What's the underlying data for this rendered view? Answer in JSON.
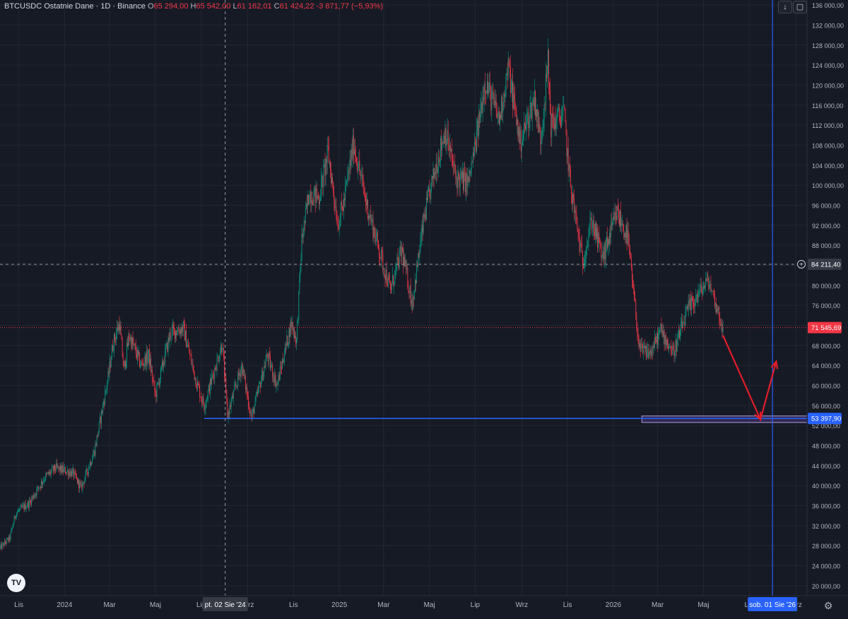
{
  "legend": {
    "symbol": "BTCUSDC Ostatnie Dane · 1D · Binance",
    "o_key": "O",
    "o_val": "65 294,00",
    "h_key": "H",
    "h_val": "65 542,00",
    "l_key": "L",
    "l_val": "61 162,01",
    "c_key": "C",
    "c_val": "61 424,22",
    "change": "-3 871,77 (−5,93%)"
  },
  "icons": {
    "scroll": "arrow-down-icon",
    "screenshot": "camera-icon",
    "logo": "tradingview-logo-icon",
    "settings": "gear-icon"
  },
  "icon_glyphs": {
    "scroll": "↓",
    "screenshot": "▢",
    "logo": "TV",
    "settings": "⚙"
  },
  "colors": {
    "background": "#161a25",
    "grid": "#232632",
    "text": "#b2b5be",
    "up": "#089981",
    "down": "#f23645",
    "accent": "#2962ff",
    "last_price_label": "#f23645",
    "arrow": "#e11d2a",
    "zone": "#7e57c2"
  },
  "chart_data": {
    "type": "candlestick",
    "symbol": "BTCUSDC",
    "interval": "1D",
    "exchange": "Binance",
    "price_scale": {
      "min": 18000,
      "max": 137000,
      "tick_step": 4000,
      "side": "right"
    },
    "y_ticks": [
      "136 000,00",
      "132 000,00",
      "128 000,00",
      "124 000,00",
      "120 000,00",
      "116 000,00",
      "112 000,00",
      "108 000,00",
      "104 000,00",
      "100 000,00",
      "96 000,00",
      "92 000,00",
      "88 000,00",
      "84 000,00",
      "80 000,00",
      "76 000,00",
      "72 000,00",
      "68 000,00",
      "64 000,00",
      "60 000,00",
      "56 000,00",
      "52 000,00",
      "48 000,00",
      "44 000,00",
      "40 000,00",
      "36 000,00",
      "32 000,00",
      "28 000,00",
      "24 000,00",
      "20 000,00"
    ],
    "x_ticks": [
      {
        "label": "Lis",
        "date": "2023-11-01"
      },
      {
        "label": "2024",
        "date": "2024-01-01"
      },
      {
        "label": "Mar",
        "date": "2024-03-01"
      },
      {
        "label": "Maj",
        "date": "2024-05-01"
      },
      {
        "label": "Lip",
        "date": "2024-07-01"
      },
      {
        "label": "Wrz",
        "date": "2024-09-01"
      },
      {
        "label": "Lis",
        "date": "2024-11-01"
      },
      {
        "label": "2025",
        "date": "2025-01-01"
      },
      {
        "label": "Mar",
        "date": "2025-03-01"
      },
      {
        "label": "Maj",
        "date": "2025-05-01"
      },
      {
        "label": "Lip",
        "date": "2025-07-01"
      },
      {
        "label": "Wrz",
        "date": "2025-09-01"
      },
      {
        "label": "Lis",
        "date": "2025-11-01"
      },
      {
        "label": "2026",
        "date": "2026-01-01"
      },
      {
        "label": "Mar",
        "date": "2026-03-01"
      },
      {
        "label": "Maj",
        "date": "2026-05-01"
      },
      {
        "label": "Lip",
        "date": "2026-07-01"
      },
      {
        "label": "Wrz",
        "date": "2026-09-01"
      }
    ],
    "x_range": [
      "2023-10-07",
      "2026-09-16"
    ],
    "last_close_date": "2026-05-27",
    "close_path": [
      [
        "2023-10-07",
        27500
      ],
      [
        "2023-10-20",
        29500
      ],
      [
        "2023-10-28",
        34500
      ],
      [
        "2023-11-15",
        36500
      ],
      [
        "2023-12-05",
        41500
      ],
      [
        "2023-12-20",
        43500
      ],
      [
        "2024-01-12",
        42500
      ],
      [
        "2024-01-23",
        39500
      ],
      [
        "2024-02-10",
        47000
      ],
      [
        "2024-02-28",
        61500
      ],
      [
        "2024-03-05",
        68000
      ],
      [
        "2024-03-14",
        72500
      ],
      [
        "2024-03-20",
        63000
      ],
      [
        "2024-03-27",
        70000
      ],
      [
        "2024-04-12",
        64000
      ],
      [
        "2024-04-22",
        66000
      ],
      [
        "2024-05-01",
        58000
      ],
      [
        "2024-05-21",
        70500
      ],
      [
        "2024-06-07",
        71500
      ],
      [
        "2024-06-24",
        61000
      ],
      [
        "2024-07-05",
        56000
      ],
      [
        "2024-07-29",
        68500
      ],
      [
        "2024-08-05",
        54000
      ],
      [
        "2024-08-24",
        64000
      ],
      [
        "2024-09-06",
        53500
      ],
      [
        "2024-09-27",
        66000
      ],
      [
        "2024-10-10",
        60000
      ],
      [
        "2024-10-29",
        72500
      ],
      [
        "2024-11-05",
        69000
      ],
      [
        "2024-11-12",
        89000
      ],
      [
        "2024-11-22",
        98500
      ],
      [
        "2024-12-05",
        97500
      ],
      [
        "2024-12-17",
        106500
      ],
      [
        "2024-12-30",
        92500
      ],
      [
        "2025-01-07",
        96500
      ],
      [
        "2025-01-20",
        108500
      ],
      [
        "2025-02-05",
        97000
      ],
      [
        "2025-02-25",
        86000
      ],
      [
        "2025-03-10",
        79000
      ],
      [
        "2025-03-25",
        87000
      ],
      [
        "2025-04-08",
        76500
      ],
      [
        "2025-04-24",
        93500
      ],
      [
        "2025-05-10",
        104000
      ],
      [
        "2025-05-22",
        111000
      ],
      [
        "2025-06-05",
        101500
      ],
      [
        "2025-06-22",
        100500
      ],
      [
        "2025-07-03",
        109500
      ],
      [
        "2025-07-14",
        121000
      ],
      [
        "2025-08-02",
        113000
      ],
      [
        "2025-08-14",
        123500
      ],
      [
        "2025-08-30",
        108500
      ],
      [
        "2025-09-18",
        117500
      ],
      [
        "2025-09-26",
        109000
      ],
      [
        "2025-10-06",
        124500
      ],
      [
        "2025-10-10",
        112000
      ],
      [
        "2025-10-27",
        114500
      ],
      [
        "2025-11-04",
        101000
      ],
      [
        "2025-11-21",
        84500
      ],
      [
        "2025-12-03",
        93000
      ],
      [
        "2025-12-18",
        85500
      ],
      [
        "2026-01-06",
        94500
      ],
      [
        "2026-01-20",
        89500
      ],
      [
        "2026-02-05",
        67000
      ],
      [
        "2026-02-20",
        66500
      ],
      [
        "2026-03-05",
        71000
      ],
      [
        "2026-03-22",
        66500
      ],
      [
        "2026-04-10",
        75000
      ],
      [
        "2026-04-30",
        79500
      ],
      [
        "2026-05-08",
        81000
      ],
      [
        "2026-05-16",
        77000
      ],
      [
        "2026-05-27",
        71550
      ]
    ],
    "last_price": {
      "value": 71545.69,
      "label": "71 545,69"
    },
    "crosshair": {
      "date": "2024-08-02",
      "date_label": "pt. 02 Sie '24",
      "price": 84211.4,
      "price_label": "84 211,40"
    },
    "cursor_date": {
      "date": "2026-08-01",
      "label": "sob. 01 Sie '26"
    },
    "support_line": {
      "price": 53397.9,
      "label": "53 397,90",
      "from_date": "2024-07-05"
    },
    "target_zone": {
      "from_date": "2026-02-08",
      "y_from": 52600,
      "y_to": 53900
    },
    "projection": [
      [
        "2026-05-27",
        70000
      ],
      [
        "2026-07-16",
        53200
      ],
      [
        "2026-08-06",
        64800
      ]
    ]
  }
}
